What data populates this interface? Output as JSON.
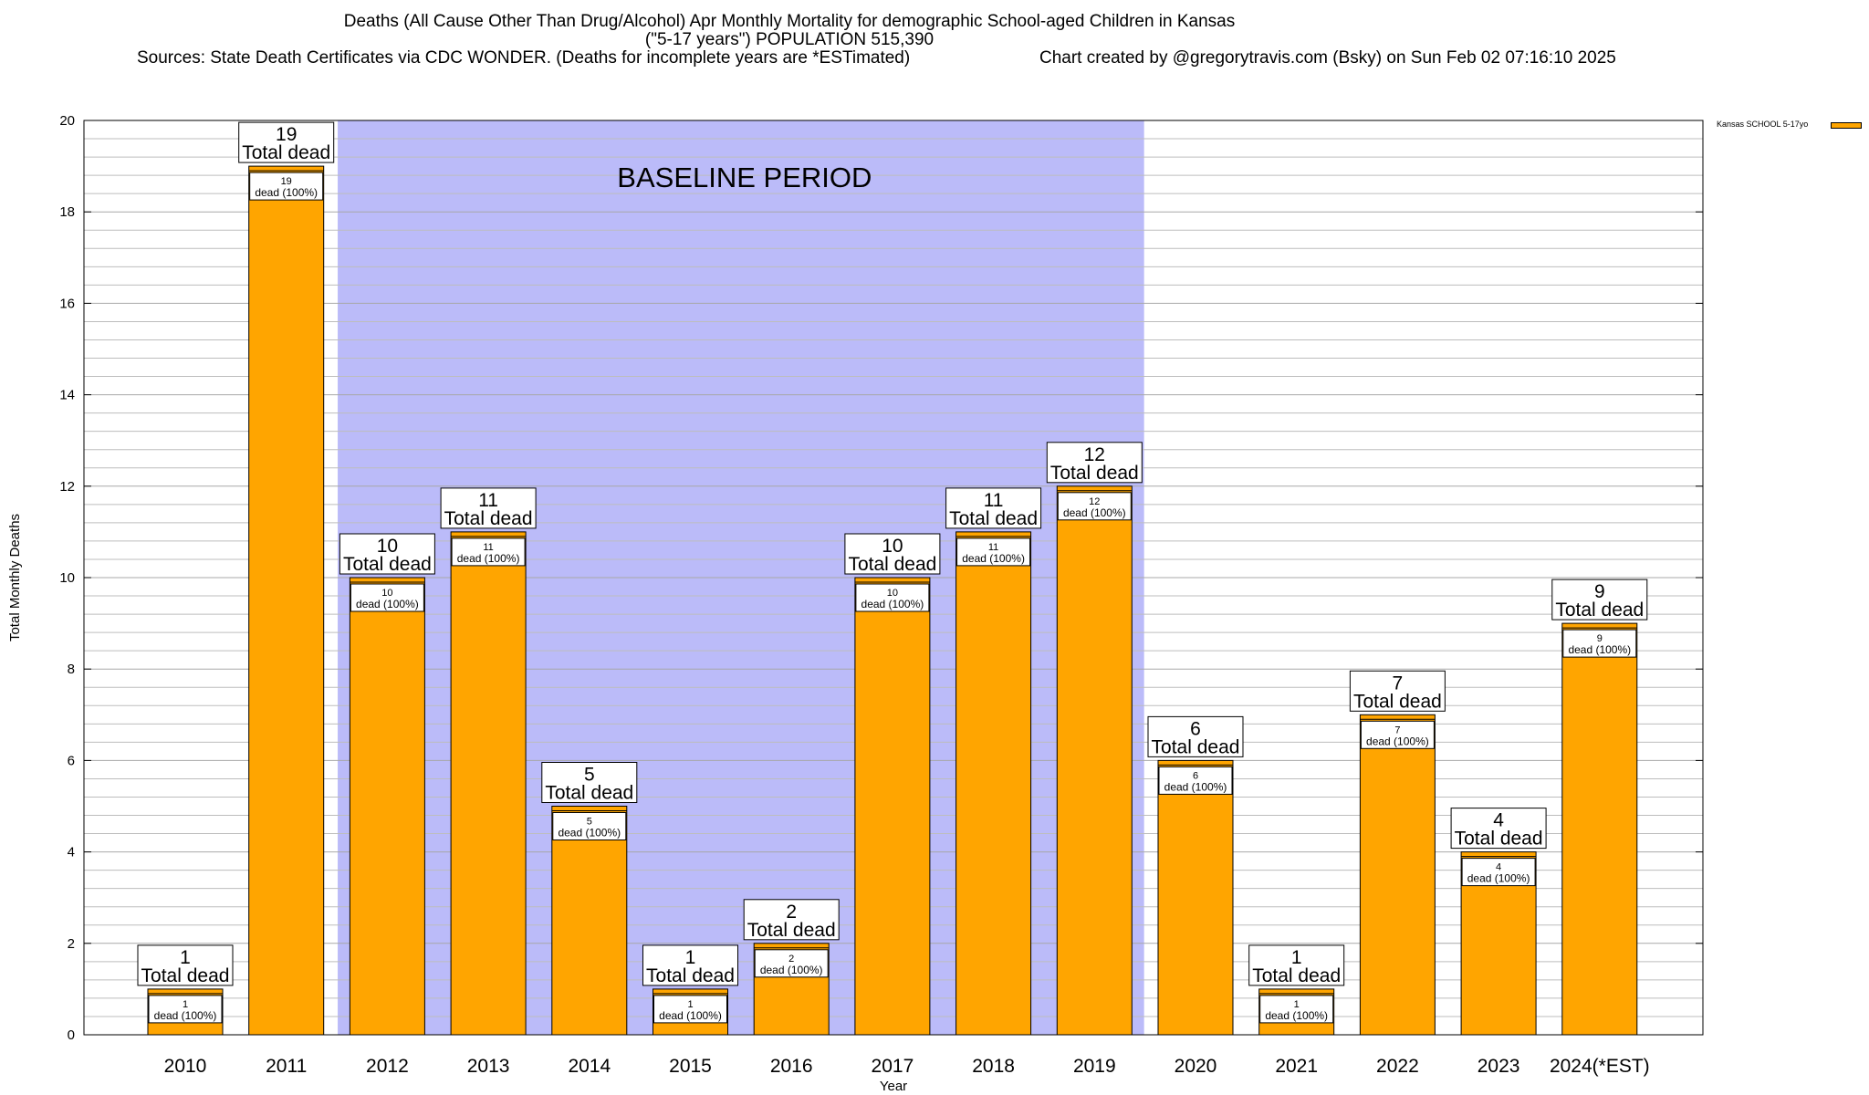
{
  "chart_data": {
    "type": "bar",
    "title": "Deaths (All Cause Other Than Drug/Alcohol) Apr Monthly Mortality for demographic School-aged Children in Kansas",
    "subtitle": "(\"5-17 years\") POPULATION 515,390",
    "source": "Sources: State Death Certificates via CDC WONDER. (Deaths for incomplete years are *ESTimated)",
    "credit": "Chart created by @gregorytravis.com (Bsky) on Sun Feb 02 07:16:10 2025",
    "xlabel": "Year",
    "ylabel": "Total Monthly Deaths",
    "ylim": [
      0,
      20
    ],
    "yticks": [
      0,
      2,
      4,
      6,
      8,
      10,
      12,
      14,
      16,
      18,
      20
    ],
    "categories": [
      "2010",
      "2011",
      "2012",
      "2013",
      "2014",
      "2015",
      "2016",
      "2017",
      "2018",
      "2019",
      "2020",
      "2021",
      "2022",
      "2023",
      "2024(*EST)"
    ],
    "values": [
      1,
      19,
      10,
      11,
      5,
      1,
      2,
      10,
      11,
      12,
      6,
      1,
      7,
      4,
      9
    ],
    "bar_color": "#ffa500",
    "total_label_suffix": "Total dead",
    "inner_label_suffix": "dead (100%)",
    "legend": {
      "label": "Kansas SCHOOL 5-17yo",
      "placement": "top-right"
    },
    "baseline": {
      "label": "BASELINE PERIOD",
      "start_category": "2012",
      "end_category": "2019",
      "color": "#bbbbf9"
    },
    "grid": true
  }
}
